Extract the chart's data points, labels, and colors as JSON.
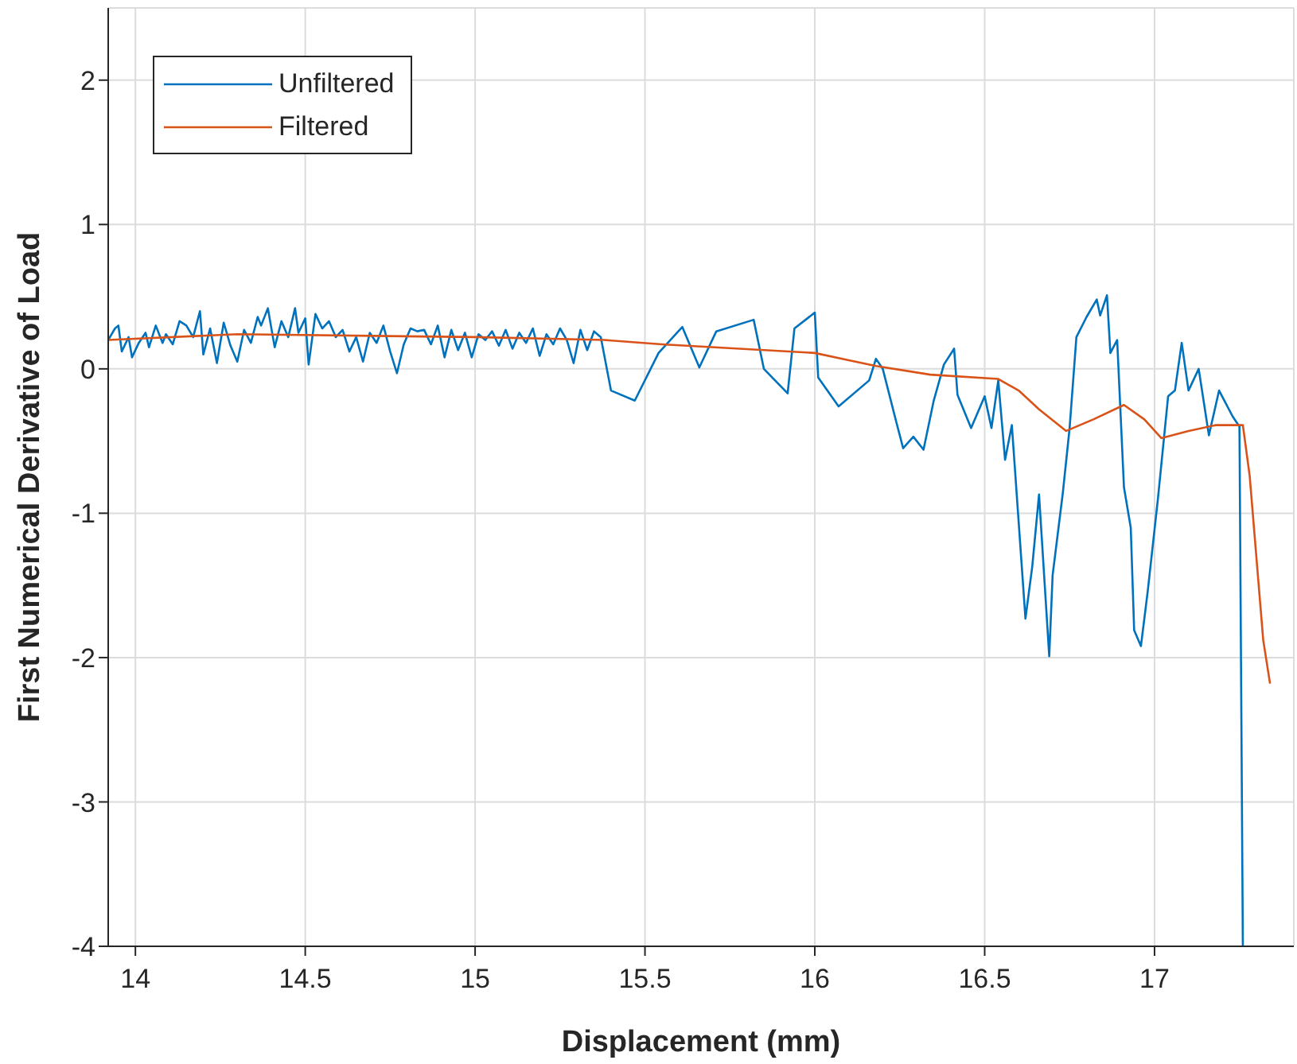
{
  "chart_data": {
    "type": "line",
    "xlabel": "Displacement (mm)",
    "ylabel": "First Numerical Derivative of Load",
    "xlim": [
      13.92,
      17.41
    ],
    "xticks": [
      14,
      14.5,
      15,
      15.5,
      16,
      16.5,
      17
    ],
    "ylim": [
      -4,
      2.5
    ],
    "yticks": [
      -4,
      -3,
      -2,
      -1,
      0,
      1,
      2
    ],
    "grid": true,
    "legend": "top left",
    "series": [
      {
        "name": "Unfiltered",
        "color": "#0072bd",
        "x": [
          13.92,
          13.94,
          13.95,
          13.96,
          13.98,
          13.99,
          14.01,
          14.03,
          14.04,
          14.06,
          14.08,
          14.09,
          14.11,
          14.13,
          14.15,
          14.17,
          14.19,
          14.2,
          14.22,
          14.24,
          14.26,
          14.28,
          14.3,
          14.32,
          14.34,
          14.36,
          14.37,
          14.39,
          14.41,
          14.43,
          14.45,
          14.47,
          14.48,
          14.5,
          14.51,
          14.53,
          14.55,
          14.57,
          14.59,
          14.61,
          14.63,
          14.65,
          14.67,
          14.69,
          14.71,
          14.73,
          14.75,
          14.77,
          14.79,
          14.81,
          14.83,
          14.85,
          14.87,
          14.89,
          14.91,
          14.93,
          14.95,
          14.97,
          14.99,
          15.01,
          15.03,
          15.05,
          15.07,
          15.09,
          15.11,
          15.13,
          15.15,
          15.17,
          15.19,
          15.21,
          15.23,
          15.25,
          15.27,
          15.29,
          15.31,
          15.33,
          15.35,
          15.37,
          15.4,
          15.47,
          15.54,
          15.61,
          15.66,
          15.71,
          15.82,
          15.85,
          15.92,
          15.94,
          16.0,
          16.01,
          16.07,
          16.16,
          16.18,
          16.2,
          16.24,
          16.26,
          16.29,
          16.32,
          16.35,
          16.38,
          16.41,
          16.42,
          16.46,
          16.5,
          16.52,
          16.54,
          16.56,
          16.58,
          16.62,
          16.64,
          16.66,
          16.69,
          16.7,
          16.73,
          16.75,
          16.77,
          16.8,
          16.83,
          16.84,
          16.86,
          16.87,
          16.89,
          16.91,
          16.93,
          16.94,
          16.96,
          16.98,
          17.01,
          17.04,
          17.06,
          17.08,
          17.1,
          17.13,
          17.16,
          17.19,
          17.23,
          17.25,
          17.26
        ],
        "values": [
          0.2,
          0.28,
          0.3,
          0.12,
          0.22,
          0.08,
          0.18,
          0.25,
          0.15,
          0.3,
          0.18,
          0.24,
          0.17,
          0.33,
          0.3,
          0.22,
          0.4,
          0.1,
          0.28,
          0.04,
          0.32,
          0.16,
          0.05,
          0.27,
          0.18,
          0.36,
          0.3,
          0.42,
          0.15,
          0.33,
          0.22,
          0.42,
          0.25,
          0.35,
          0.03,
          0.38,
          0.28,
          0.33,
          0.22,
          0.27,
          0.12,
          0.22,
          0.05,
          0.25,
          0.18,
          0.3,
          0.12,
          -0.03,
          0.17,
          0.28,
          0.26,
          0.27,
          0.17,
          0.3,
          0.08,
          0.27,
          0.13,
          0.25,
          0.08,
          0.24,
          0.2,
          0.26,
          0.16,
          0.27,
          0.14,
          0.25,
          0.18,
          0.28,
          0.09,
          0.24,
          0.17,
          0.28,
          0.2,
          0.04,
          0.27,
          0.13,
          0.26,
          0.22,
          -0.15,
          -0.22,
          0.11,
          0.29,
          0.01,
          0.26,
          0.34,
          0.0,
          -0.17,
          0.28,
          0.39,
          -0.06,
          -0.26,
          -0.08,
          0.07,
          0.0,
          -0.37,
          -0.55,
          -0.47,
          -0.56,
          -0.22,
          0.03,
          0.14,
          -0.18,
          -0.41,
          -0.19,
          -0.41,
          -0.08,
          -0.63,
          -0.39,
          -1.73,
          -1.37,
          -0.87,
          -1.99,
          -1.43,
          -0.86,
          -0.41,
          0.22,
          0.36,
          0.48,
          0.37,
          0.51,
          0.11,
          0.2,
          -0.82,
          -1.1,
          -1.81,
          -1.92,
          -1.54,
          -0.9,
          -0.19,
          -0.15,
          0.18,
          -0.15,
          0.0,
          -0.46,
          -0.15,
          -0.33,
          -0.4,
          -4
        ]
      },
      {
        "name": "Filtered",
        "color": "#d95319",
        "x": [
          13.92,
          14.3,
          15.0,
          15.38,
          15.55,
          16.0,
          16.1,
          16.18,
          16.34,
          16.54,
          16.6,
          16.66,
          16.74,
          16.82,
          16.91,
          16.97,
          17.02,
          17.1,
          17.18,
          17.26,
          17.28,
          17.32,
          17.34
        ],
        "values": [
          0.2,
          0.24,
          0.22,
          0.2,
          0.17,
          0.11,
          0.06,
          0.02,
          -0.04,
          -0.07,
          -0.15,
          -0.28,
          -0.43,
          -0.35,
          -0.25,
          -0.35,
          -0.48,
          -0.43,
          -0.39,
          -0.39,
          -0.74,
          -1.88,
          -2.18
        ]
      }
    ]
  }
}
